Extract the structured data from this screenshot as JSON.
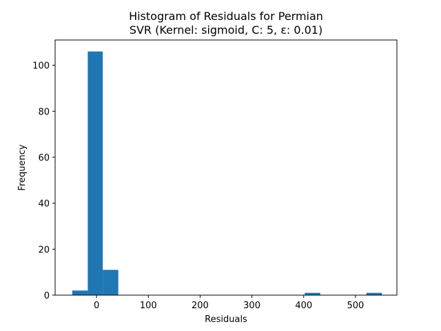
{
  "chart_data": {
    "type": "bar",
    "title": "Histogram of Residuals for Permian",
    "subtitle": "SVR (Kernel: sigmoid, C: 5, ε: 0.01)",
    "xlabel": "Residuals",
    "ylabel": "Frequency",
    "xlim": [
      -80,
      580
    ],
    "ylim": [
      0,
      111
    ],
    "x_ticks": [
      0,
      100,
      200,
      300,
      400,
      500
    ],
    "y_ticks": [
      0,
      20,
      40,
      60,
      80,
      100
    ],
    "bar_color": "#1f77b4",
    "bins": [
      {
        "x0": -47,
        "x1": -17,
        "count": 2
      },
      {
        "x0": -17,
        "x1": 12,
        "count": 106
      },
      {
        "x0": 12,
        "x1": 42,
        "count": 11
      },
      {
        "x0": 402,
        "x1": 432,
        "count": 1
      },
      {
        "x0": 521,
        "x1": 551,
        "count": 1
      }
    ],
    "grid": false,
    "legend": "none"
  }
}
